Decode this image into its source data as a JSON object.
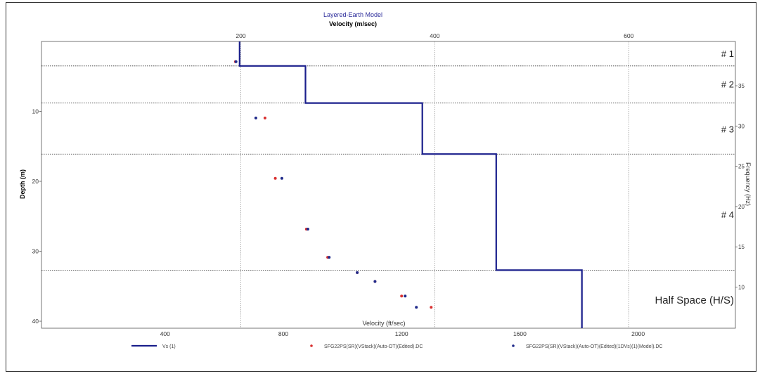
{
  "colors": {
    "profile": "#1a1f8c",
    "series_red": "#d93030",
    "series_blue": "#1f2a8a",
    "title": "#2b2b9a",
    "grid": "#8a8a8a"
  },
  "chart_data": {
    "type": "line",
    "title": "Layered-Earth Model",
    "top_axis": {
      "label": "Velocity (m/sec)",
      "ticks": [
        200,
        400,
        600
      ],
      "range": [
        -5.5,
        710
      ]
    },
    "bottom_axis": {
      "label": "Velocity (ft/sec)",
      "ticks": [
        400,
        800,
        1200,
        1600,
        2000
      ],
      "range": [
        -18,
        2329
      ]
    },
    "left_axis": {
      "label": "Depth (m)",
      "ticks": [
        10,
        20,
        30,
        40
      ],
      "range": [
        0,
        41
      ]
    },
    "right_axis": {
      "label": "Frequency (Hz)",
      "ticks": [
        10,
        15,
        20,
        25,
        30,
        35
      ],
      "range": [
        4.9,
        40.5
      ]
    },
    "layer_boundaries": [
      3.5,
      8.8,
      16.1,
      32.7
    ],
    "layer_labels": [
      {
        "text": "# 1",
        "depth": 1.7
      },
      {
        "text": "# 2",
        "depth": 6.1
      },
      {
        "text": "# 3",
        "depth": 12.5
      },
      {
        "text": "# 4",
        "depth": 24.7
      },
      {
        "text": "Half Space (H/S)",
        "depth": 37.0
      }
    ],
    "vs_profile": {
      "name": "Vs (1)",
      "velocity_ft_s": [
        652,
        652,
        875,
        875,
        1270,
        1270,
        1520,
        1520,
        1810,
        1810
      ],
      "depth_m": [
        0,
        3.5,
        3.5,
        8.8,
        8.8,
        16.1,
        16.1,
        32.7,
        32.7,
        41
      ]
    },
    "series": [
      {
        "name": "SFG22PS(SR)(VStack)(Auto-OT)(Edited).DC",
        "frequency_hz": [
          38.0,
          31.0,
          23.5,
          17.2,
          13.7,
          11.8,
          10.7,
          8.9,
          7.5
        ],
        "velocity_ft_s": [
          638,
          738,
          773,
          878,
          950,
          1050,
          1110,
          1200,
          1300
        ]
      },
      {
        "name": "SFG22PS(SR)(VStack)(Auto-OT)(Edited)(1DVs)(1)(Model).DC",
        "frequency_hz": [
          38.0,
          31.0,
          23.5,
          17.2,
          13.7,
          11.8,
          10.7,
          8.9,
          7.5
        ],
        "velocity_ft_s": [
          640,
          707,
          795,
          883,
          955,
          1050,
          1110,
          1212,
          1250
        ]
      }
    ]
  }
}
